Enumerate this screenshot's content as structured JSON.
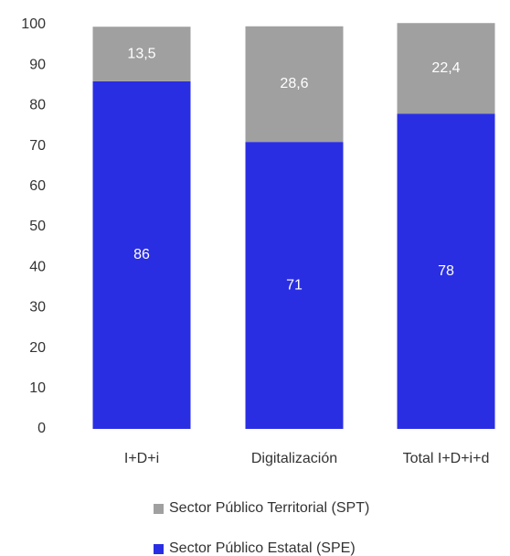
{
  "chart_data": {
    "type": "stacked_bar",
    "categories": [
      "I+D+i",
      "Digitalización",
      "Total I+D+i+d"
    ],
    "series": [
      {
        "name": "Sector Público Estatal (SPE)",
        "color": "#2a2ee2",
        "values": [
          86,
          71,
          78
        ]
      },
      {
        "name": "Sector Público Territorial (SPT)",
        "color": "#a0a0a0",
        "values": [
          13.5,
          28.6,
          22.4
        ],
        "value_labels": [
          "13,5",
          "28,6",
          "22,4"
        ]
      }
    ],
    "ylim": [
      0,
      100
    ],
    "yticks": [
      0,
      10,
      20,
      30,
      40,
      50,
      60,
      70,
      80,
      90,
      100
    ],
    "grid": false
  }
}
